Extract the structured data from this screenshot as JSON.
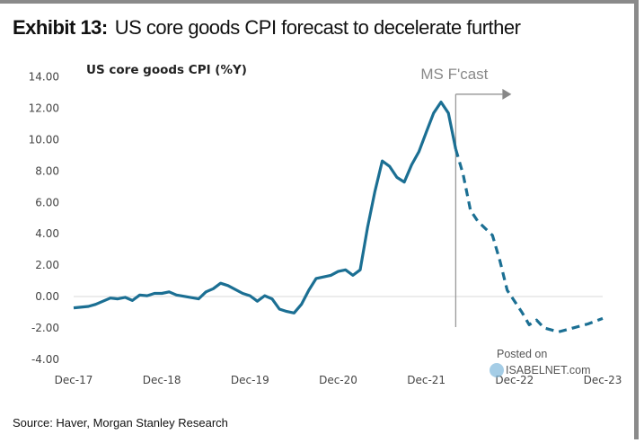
{
  "header": {
    "exhibit": "Exhibit 13:",
    "title": "US core goods CPI forecast to decelerate further"
  },
  "source": "Source: Haver, Morgan Stanley Research",
  "watermark": {
    "line1": "Posted on",
    "line2": "ISABELNET.com"
  },
  "chart_data": {
    "type": "line",
    "ylabel": "US core goods CPI (%Y)",
    "ylim": [
      -4,
      14
    ],
    "yticks": [
      "14.00",
      "12.00",
      "10.00",
      "8.00",
      "6.00",
      "4.00",
      "2.00",
      "0.00",
      "-2.00",
      "-4.00"
    ],
    "ytick_values": [
      14,
      12,
      10,
      8,
      6,
      4,
      2,
      0,
      -2,
      -4
    ],
    "xticks": [
      "Dec-17",
      "Dec-18",
      "Dec-19",
      "Dec-20",
      "Dec-21",
      "Dec-22",
      "Dec-23"
    ],
    "xlim": [
      "2017-12",
      "2023-12"
    ],
    "grid": false,
    "zero_line": true,
    "line_color": "#1b6f93",
    "forecast_annotation": {
      "label": "MS F'cast",
      "start": "2022-04"
    },
    "series": [
      {
        "style": "solid",
        "x": [
          "2017-12",
          "2018-02",
          "2018-03",
          "2018-05",
          "2018-06",
          "2018-07",
          "2018-08",
          "2018-09",
          "2018-10",
          "2018-11",
          "2018-12",
          "2019-01",
          "2019-02",
          "2019-05",
          "2019-06",
          "2019-07",
          "2019-08",
          "2019-09",
          "2019-11",
          "2019-12",
          "2020-01",
          "2020-02",
          "2020-03",
          "2020-04",
          "2020-05",
          "2020-06",
          "2020-07",
          "2020-08",
          "2020-09",
          "2020-11",
          "2020-12",
          "2021-01",
          "2021-02",
          "2021-03",
          "2021-04",
          "2021-05",
          "2021-06",
          "2021-07",
          "2021-08",
          "2021-09",
          "2021-10",
          "2021-11",
          "2021-12",
          "2022-01",
          "2022-02",
          "2022-03",
          "2022-04"
        ],
        "y": [
          -0.72,
          -0.63,
          -0.5,
          -0.1,
          -0.15,
          -0.05,
          -0.25,
          0.1,
          0.05,
          0.2,
          0.2,
          0.3,
          0.1,
          -0.15,
          0.3,
          0.5,
          0.85,
          0.7,
          0.2,
          0.05,
          -0.3,
          0.05,
          -0.15,
          -0.8,
          -0.95,
          -1.05,
          -0.5,
          0.4,
          1.15,
          1.35,
          1.6,
          1.7,
          1.35,
          1.7,
          4.4,
          6.7,
          8.65,
          8.3,
          7.6,
          7.3,
          8.4,
          9.25,
          10.5,
          11.7,
          12.4,
          11.7,
          9.4
        ]
      },
      {
        "style": "dashed",
        "x": [
          "2022-04",
          "2022-05",
          "2022-06",
          "2022-07",
          "2022-09",
          "2022-10",
          "2022-11",
          "2023-01",
          "2023-02",
          "2023-03",
          "2023-04",
          "2023-06",
          "2023-08",
          "2023-10",
          "2023-12"
        ],
        "y": [
          9.4,
          7.8,
          5.5,
          4.8,
          3.9,
          2.3,
          0.4,
          -1.0,
          -1.8,
          -1.5,
          -2.0,
          -2.25,
          -2.0,
          -1.75,
          -1.4
        ]
      }
    ]
  }
}
